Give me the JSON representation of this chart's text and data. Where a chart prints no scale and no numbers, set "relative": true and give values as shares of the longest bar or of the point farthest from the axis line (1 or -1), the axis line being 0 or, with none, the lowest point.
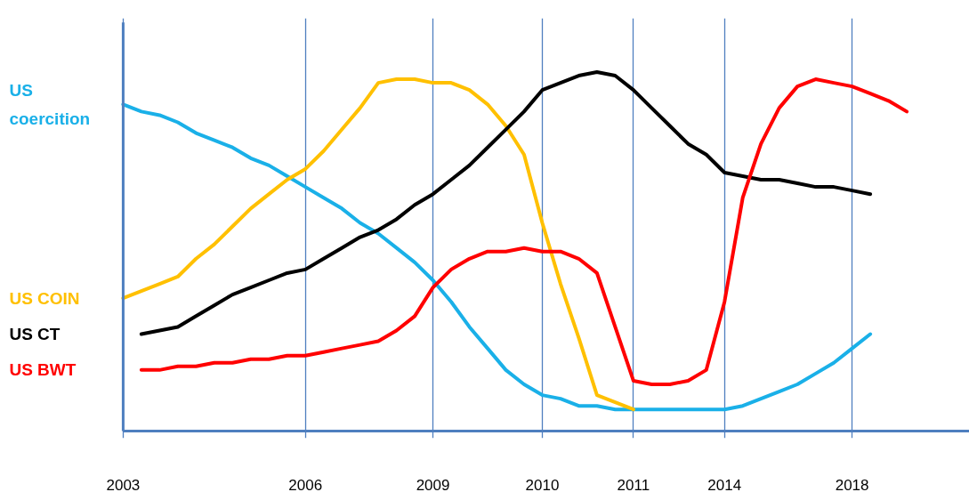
{
  "chart_data": {
    "type": "line",
    "relative": true,
    "categories": [
      "2003",
      null,
      null,
      null,
      null,
      null,
      null,
      null,
      null,
      null,
      "2006",
      null,
      null,
      null,
      null,
      null,
      null,
      "2009",
      null,
      null,
      null,
      null,
      null,
      "2010",
      null,
      null,
      null,
      null,
      "2011",
      null,
      null,
      null,
      null,
      "2014",
      null,
      null,
      null,
      null,
      null,
      null,
      "2018",
      null,
      null,
      null
    ],
    "tick_labels": "x",
    "grid": "x",
    "marker": "none",
    "line_style": "solid",
    "series": [
      {
        "name": "US coercition",
        "color": "#1ab0e8",
        "values": [
          0.91,
          0.89,
          0.88,
          0.86,
          0.83,
          0.81,
          0.79,
          0.76,
          0.74,
          0.71,
          0.68,
          0.65,
          0.62,
          0.58,
          0.55,
          0.51,
          0.47,
          0.42,
          0.36,
          0.29,
          0.23,
          0.17,
          0.13,
          0.1,
          0.09,
          0.07,
          0.07,
          0.06,
          0.06,
          0.06,
          0.06,
          0.06,
          0.06,
          0.06,
          0.07,
          0.09,
          0.11,
          0.13,
          0.16,
          0.19,
          0.23,
          0.27,
          null,
          null
        ]
      },
      {
        "name": "US COIN",
        "color": "#ffc000",
        "values": [
          0.37,
          0.39,
          0.41,
          0.43,
          0.48,
          0.52,
          0.57,
          0.62,
          0.66,
          0.7,
          0.73,
          0.78,
          0.84,
          0.9,
          0.97,
          0.98,
          0.98,
          0.97,
          0.97,
          0.95,
          0.91,
          0.85,
          0.77,
          0.58,
          0.41,
          0.26,
          0.1,
          0.08,
          0.06,
          null,
          null,
          null,
          null,
          null,
          null,
          null,
          null,
          null,
          null,
          null,
          null,
          null,
          null,
          null
        ]
      },
      {
        "name": "US CT",
        "color": "#000000",
        "values": [
          null,
          0.27,
          0.28,
          0.29,
          0.32,
          0.35,
          0.38,
          0.4,
          0.42,
          0.44,
          0.45,
          0.48,
          0.51,
          0.54,
          0.56,
          0.59,
          0.63,
          0.66,
          0.7,
          0.74,
          0.79,
          0.84,
          0.89,
          0.95,
          0.97,
          0.99,
          1.0,
          0.99,
          0.95,
          0.9,
          0.85,
          0.8,
          0.77,
          0.72,
          0.71,
          0.7,
          0.7,
          0.69,
          0.68,
          0.68,
          0.67,
          0.66,
          null,
          null
        ]
      },
      {
        "name": "US BWT",
        "color": "#ff0000",
        "values": [
          null,
          0.17,
          0.17,
          0.18,
          0.18,
          0.19,
          0.19,
          0.2,
          0.2,
          0.21,
          0.21,
          0.22,
          0.23,
          0.24,
          0.25,
          0.28,
          0.32,
          0.4,
          0.45,
          0.48,
          0.5,
          0.5,
          0.51,
          0.5,
          0.5,
          0.48,
          0.44,
          0.29,
          0.14,
          0.13,
          0.13,
          0.14,
          0.17,
          0.36,
          0.65,
          0.8,
          0.9,
          0.96,
          0.98,
          0.97,
          0.96,
          0.94,
          0.92,
          0.89
        ]
      }
    ]
  }
}
